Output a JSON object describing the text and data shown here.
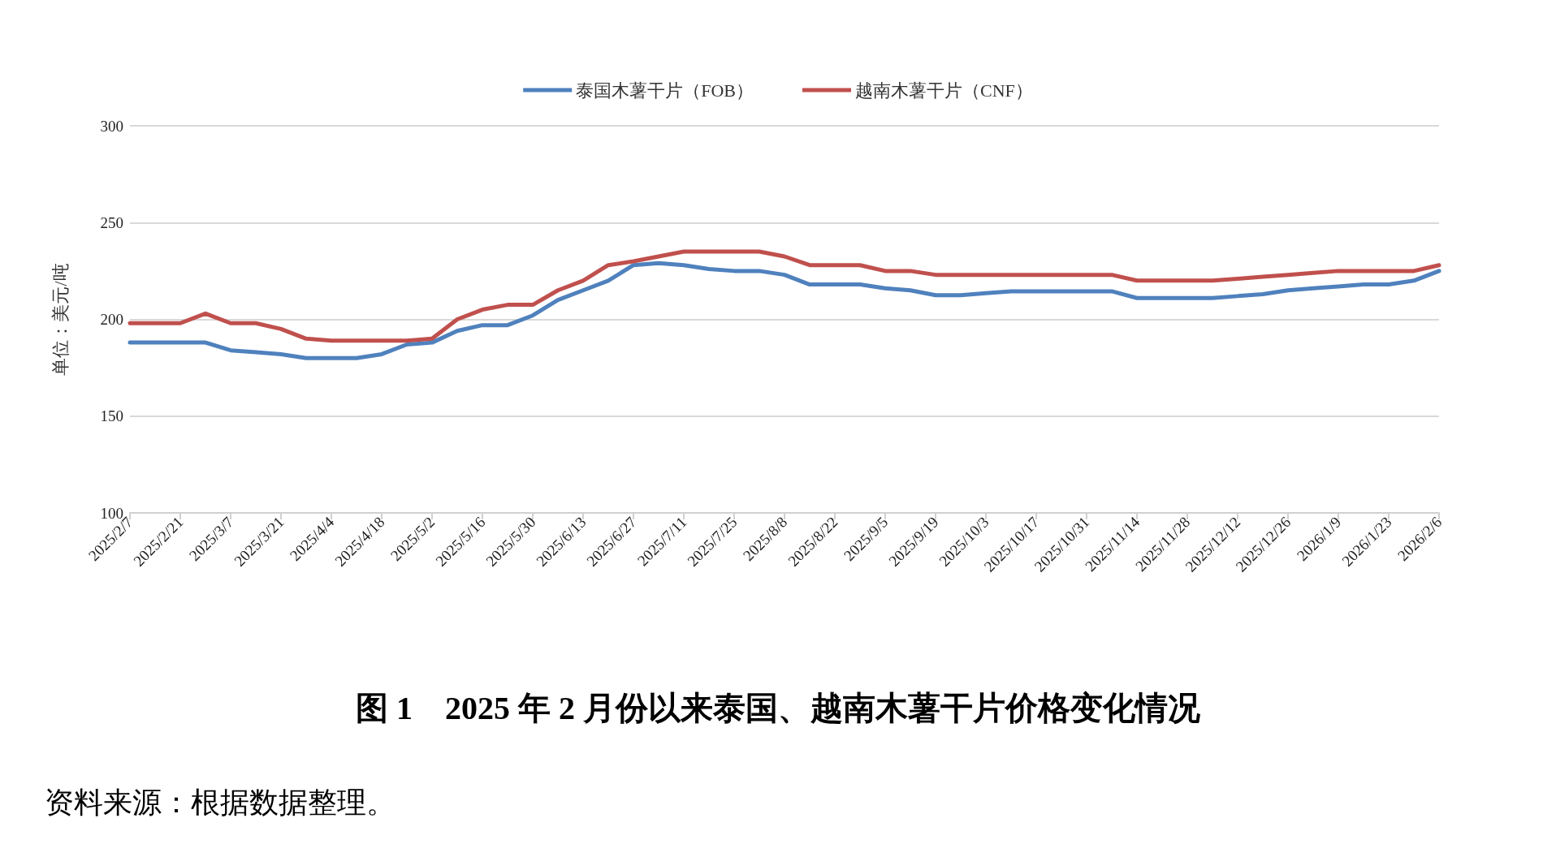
{
  "chart_data": {
    "type": "line",
    "title": "图 1　2025 年 2 月份以来泰国、越南木薯干片价格变化情况",
    "ylabel": "单位：美元/吨",
    "annotations": [
      "资料来源：根据数据整理。"
    ],
    "categories": [
      "2025/2/7",
      null,
      "2025/2/21",
      null,
      "2025/3/7",
      null,
      "2025/3/21",
      null,
      "2025/4/4",
      null,
      "2025/4/18",
      null,
      "2025/5/2",
      null,
      "2025/5/16",
      null,
      "2025/5/30",
      null,
      "2025/6/13",
      null,
      "2025/6/27",
      null,
      "2025/7/11",
      null,
      "2025/7/25",
      null,
      "2025/8/8",
      null,
      "2025/8/22",
      null,
      "2025/9/5",
      null,
      "2025/9/19",
      null,
      "2025/10/3",
      null,
      "2025/10/17",
      null,
      "2025/10/31",
      null,
      "2025/11/14",
      null,
      "2025/11/28",
      null,
      "2025/12/12",
      null,
      "2025/12/26",
      null,
      "2026/1/9",
      null,
      "2026/1/23",
      null,
      "2026/2/6"
    ],
    "series": [
      {
        "name": "泰国木薯干片（FOB）",
        "color": "#4f81bd",
        "values": [
          188,
          188,
          188,
          188,
          184,
          183,
          182,
          180,
          180,
          180,
          182,
          187,
          188,
          194,
          197,
          197,
          202,
          210,
          215,
          220,
          228,
          229,
          228,
          226,
          225,
          225,
          223,
          218,
          218,
          218,
          216,
          215,
          212.5,
          212.5,
          213.5,
          214.5,
          214.5,
          214.5,
          214.5,
          214.5,
          211,
          211,
          211,
          211,
          212,
          213,
          215,
          216,
          217,
          218,
          218,
          220,
          225
        ]
      },
      {
        "name": "越南木薯干片（CNF）",
        "color": "#c0504d",
        "values": [
          198,
          198,
          198,
          203,
          198,
          198,
          195,
          190,
          189,
          189,
          189,
          189,
          190,
          200,
          205,
          207.5,
          207.5,
          215,
          220,
          228,
          230,
          232.5,
          235,
          235,
          235,
          235,
          232.5,
          228,
          228,
          228,
          225,
          225,
          223,
          223,
          223,
          223,
          223,
          223,
          223,
          223,
          220,
          220,
          220,
          220,
          221,
          222,
          223,
          224,
          225,
          225,
          225,
          225,
          228
        ]
      }
    ],
    "ylim": [
      100,
      300
    ],
    "yticks": [
      100,
      150,
      200,
      250,
      300
    ],
    "grid": "y",
    "legend": "top",
    "marker": "none",
    "line_style": "solid"
  }
}
